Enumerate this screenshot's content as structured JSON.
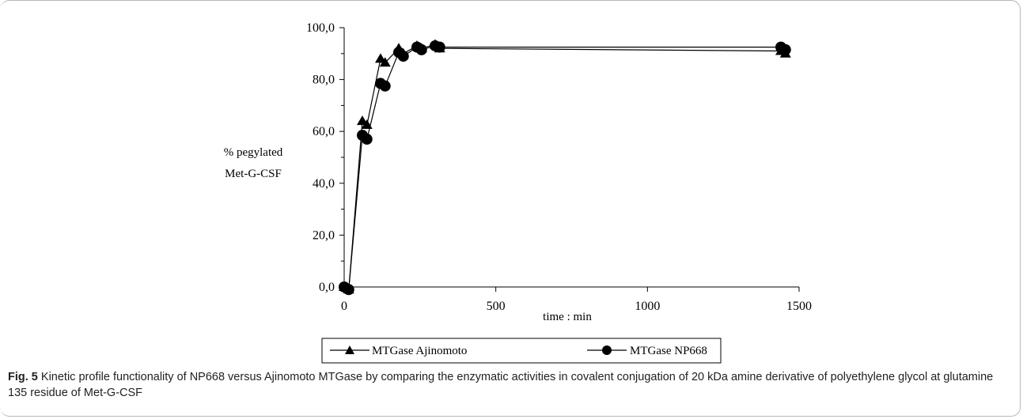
{
  "figure": {
    "label": "Fig. 5",
    "caption": "Kinetic profile functionality of NP668 versus Ajinomoto MTGase by comparing the enzymatic activities in covalent conjugation of 20 kDa amine derivative of polyethylene glycol at glutamine 135 residue of Met-G-CSF"
  },
  "chart_data": {
    "type": "line",
    "xlabel": "time : min",
    "ylabel_line1": "% pegylated",
    "ylabel_line2": "Met-G-CSF",
    "xlim": [
      0,
      1500
    ],
    "ylim": [
      0,
      100
    ],
    "x_ticks": [
      0,
      500,
      1000,
      1500
    ],
    "x_tick_labels": [
      "0",
      "500",
      "1000",
      "1500"
    ],
    "y_ticks": [
      0,
      20,
      40,
      60,
      80,
      100
    ],
    "y_tick_labels": [
      "0,0",
      "20,0",
      "40,0",
      "60,0",
      "80,0",
      "100,0"
    ],
    "grid": false,
    "legend_position": "bottom",
    "series": [
      {
        "name": "MTGase Ajinomoto",
        "marker": "triangle",
        "color": "#000000",
        "points": [
          [
            0,
            0
          ],
          [
            15,
            -1
          ],
          [
            60,
            64
          ],
          [
            75,
            62.5
          ],
          [
            120,
            88
          ],
          [
            135,
            86.5
          ],
          [
            180,
            92
          ],
          [
            195,
            90
          ],
          [
            240,
            93
          ],
          [
            255,
            92
          ],
          [
            300,
            93.5
          ],
          [
            315,
            92
          ],
          [
            1440,
            91
          ],
          [
            1455,
            90
          ]
        ]
      },
      {
        "name": "MTGase NP668",
        "marker": "circle",
        "color": "#000000",
        "points": [
          [
            0,
            0
          ],
          [
            15,
            -1
          ],
          [
            60,
            58.5
          ],
          [
            75,
            57
          ],
          [
            120,
            78.5
          ],
          [
            135,
            77.5
          ],
          [
            180,
            90.5
          ],
          [
            195,
            89
          ],
          [
            240,
            92.5
          ],
          [
            255,
            91.5
          ],
          [
            300,
            93
          ],
          [
            315,
            92.5
          ],
          [
            1440,
            92.5
          ],
          [
            1455,
            91.5
          ]
        ]
      }
    ]
  }
}
